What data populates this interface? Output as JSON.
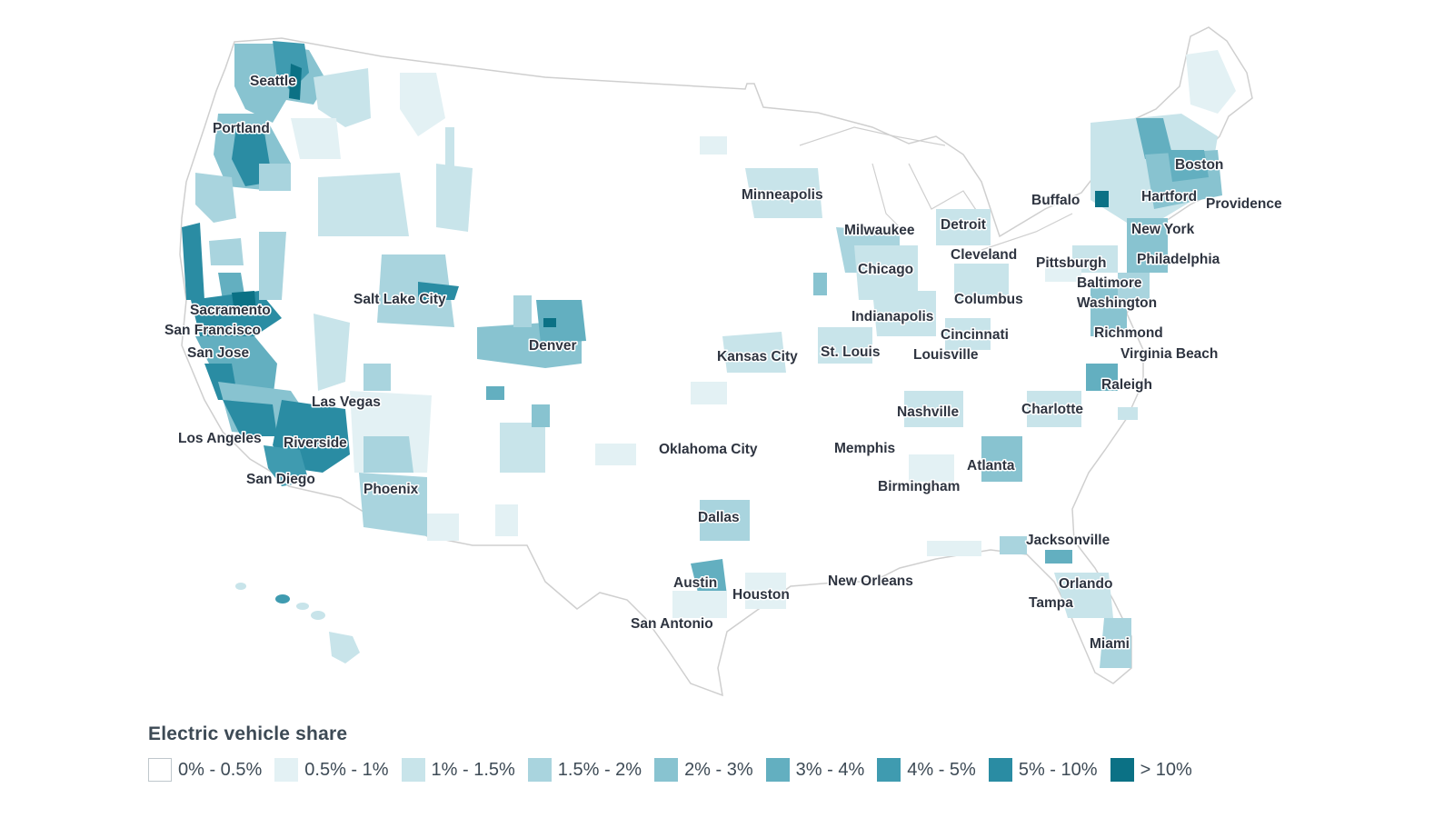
{
  "legend": {
    "title": "Electric vehicle share",
    "items": [
      {
        "label": "0% - 0.5%",
        "color": "#ffffff"
      },
      {
        "label": "0.5% - 1%",
        "color": "#e3f1f4"
      },
      {
        "label": "1% - 1.5%",
        "color": "#c8e4ea"
      },
      {
        "label": "1.5% - 2%",
        "color": "#a9d4de"
      },
      {
        "label": "2% - 3%",
        "color": "#88c3d0"
      },
      {
        "label": "3% - 4%",
        "color": "#63afc0"
      },
      {
        "label": "4% - 5%",
        "color": "#3f9bb0"
      },
      {
        "label": "5% - 10%",
        "color": "#2a8ca3"
      },
      {
        "label": "> 10%",
        "color": "#0b7185"
      }
    ]
  },
  "cities": [
    "Seattle",
    "Portland",
    "Sacramento",
    "San Francisco",
    "San Jose",
    "Los Angeles",
    "Riverside",
    "San Diego",
    "Las Vegas",
    "Phoenix",
    "Salt Lake City",
    "Denver",
    "Minneapolis",
    "Kansas City",
    "Oklahoma City",
    "Dallas",
    "Austin",
    "Houston",
    "San Antonio",
    "Milwaukee",
    "Chicago",
    "Detroit",
    "Cleveland",
    "Columbus",
    "Indianapolis",
    "Cincinnati",
    "St. Louis",
    "Louisville",
    "Nashville",
    "Memphis",
    "Birmingham",
    "Atlanta",
    "Charlotte",
    "Raleigh",
    "Richmond",
    "Virginia Beach",
    "Washington",
    "Baltimore",
    "Philadelphia",
    "New York",
    "Hartford",
    "Providence",
    "Boston",
    "Buffalo",
    "Pittsburgh",
    "New Orleans",
    "Jacksonville",
    "Orlando",
    "Tampa",
    "Miami"
  ]
}
